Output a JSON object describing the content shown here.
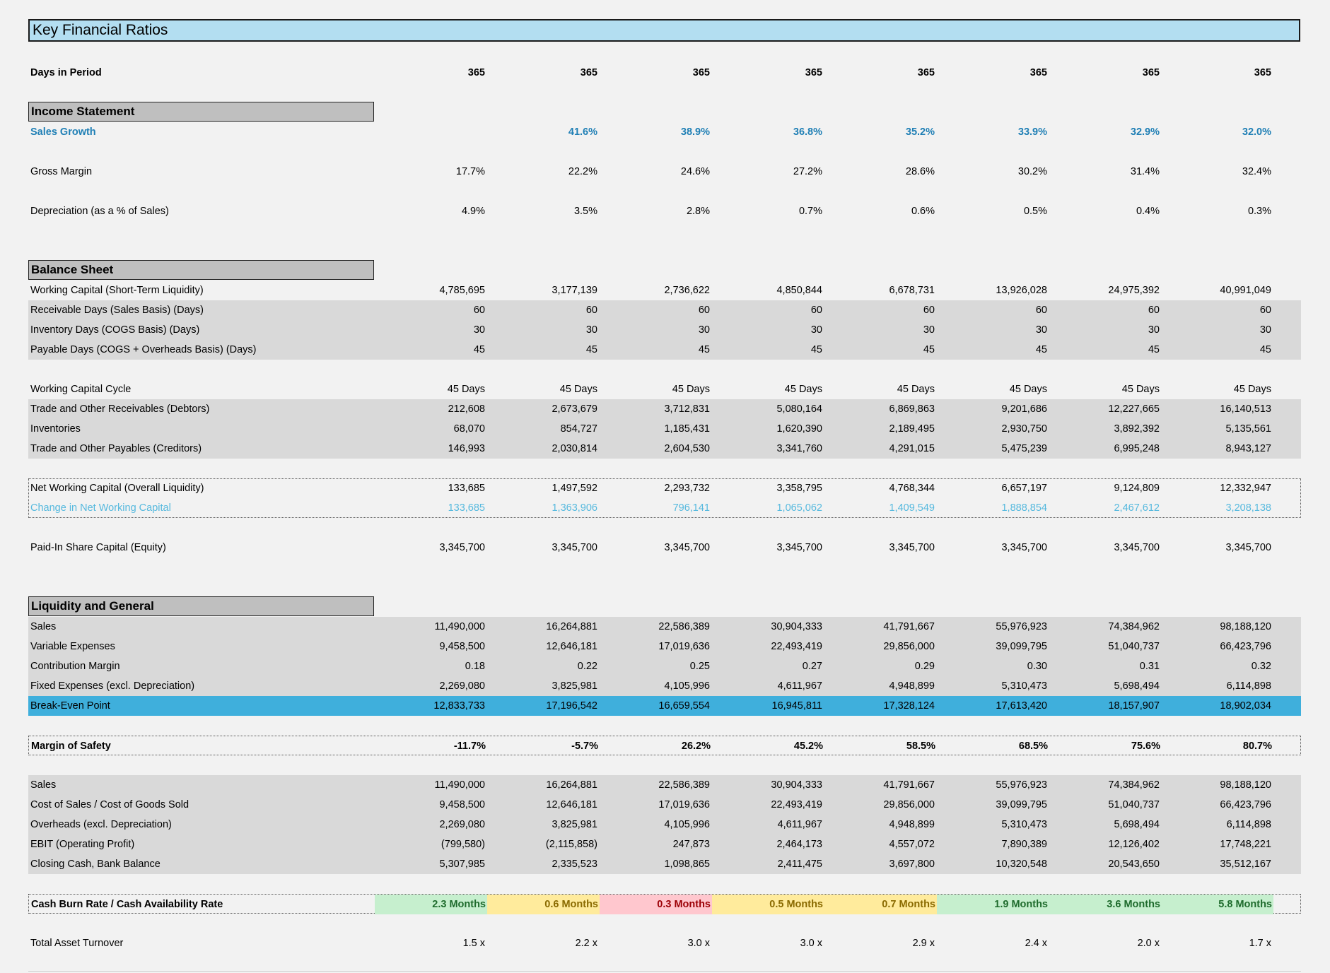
{
  "title": "Key Financial Ratios",
  "days_in_period": {
    "label": "Days in Period",
    "values": [
      "365",
      "365",
      "365",
      "365",
      "365",
      "365",
      "365",
      "365"
    ]
  },
  "income_statement": {
    "heading": "Income Statement",
    "sales_growth": {
      "label": "Sales Growth",
      "values": [
        "",
        "41.6%",
        "38.9%",
        "36.8%",
        "35.2%",
        "33.9%",
        "32.9%",
        "32.0%"
      ]
    },
    "gross_margin": {
      "label": "Gross Margin",
      "values": [
        "17.7%",
        "22.2%",
        "24.6%",
        "27.2%",
        "28.6%",
        "30.2%",
        "31.4%",
        "32.4%"
      ]
    },
    "depreciation": {
      "label": "Depreciation (as a % of Sales)",
      "values": [
        "4.9%",
        "3.5%",
        "2.8%",
        "0.7%",
        "0.6%",
        "0.5%",
        "0.4%",
        "0.3%"
      ]
    }
  },
  "balance_sheet": {
    "heading": "Balance Sheet",
    "working_capital": {
      "label": "Working Capital (Short-Term Liquidity)",
      "values": [
        "4,785,695",
        "3,177,139",
        "2,736,622",
        "4,850,844",
        "6,678,731",
        "13,926,028",
        "24,975,392",
        "40,991,049"
      ]
    },
    "receivable_days": {
      "label": "Receivable Days (Sales Basis) (Days)",
      "values": [
        "60",
        "60",
        "60",
        "60",
        "60",
        "60",
        "60",
        "60"
      ]
    },
    "inventory_days": {
      "label": "Inventory Days (COGS Basis) (Days)",
      "values": [
        "30",
        "30",
        "30",
        "30",
        "30",
        "30",
        "30",
        "30"
      ]
    },
    "payable_days": {
      "label": "Payable Days (COGS + Overheads Basis) (Days)",
      "values": [
        "45",
        "45",
        "45",
        "45",
        "45",
        "45",
        "45",
        "45"
      ]
    },
    "wc_cycle": {
      "label": "Working Capital Cycle",
      "values": [
        "45 Days",
        "45 Days",
        "45 Days",
        "45 Days",
        "45 Days",
        "45 Days",
        "45 Days",
        "45 Days"
      ]
    },
    "receivables": {
      "label": "Trade and Other Receivables (Debtors)",
      "values": [
        "212,608",
        "2,673,679",
        "3,712,831",
        "5,080,164",
        "6,869,863",
        "9,201,686",
        "12,227,665",
        "16,140,513"
      ]
    },
    "inventories": {
      "label": "Inventories",
      "values": [
        "68,070",
        "854,727",
        "1,185,431",
        "1,620,390",
        "2,189,495",
        "2,930,750",
        "3,892,392",
        "5,135,561"
      ]
    },
    "payables": {
      "label": "Trade and Other Payables (Creditors)",
      "values": [
        "146,993",
        "2,030,814",
        "2,604,530",
        "3,341,760",
        "4,291,015",
        "5,475,239",
        "6,995,248",
        "8,943,127"
      ]
    },
    "net_wc": {
      "label": "Net Working Capital (Overall Liquidity)",
      "values": [
        "133,685",
        "1,497,592",
        "2,293,732",
        "3,358,795",
        "4,768,344",
        "6,657,197",
        "9,124,809",
        "12,332,947"
      ]
    },
    "change_nwc": {
      "label": "Change in Net Working Capital",
      "values": [
        "133,685",
        "1,363,906",
        "796,141",
        "1,065,062",
        "1,409,549",
        "1,888,854",
        "2,467,612",
        "3,208,138"
      ]
    },
    "share_capital": {
      "label": "Paid-In Share Capital (Equity)",
      "values": [
        "3,345,700",
        "3,345,700",
        "3,345,700",
        "3,345,700",
        "3,345,700",
        "3,345,700",
        "3,345,700",
        "3,345,700"
      ]
    }
  },
  "liquidity": {
    "heading": "Liquidity and General",
    "sales": {
      "label": "Sales",
      "values": [
        "11,490,000",
        "16,264,881",
        "22,586,389",
        "30,904,333",
        "41,791,667",
        "55,976,923",
        "74,384,962",
        "98,188,120"
      ]
    },
    "variable_expenses": {
      "label": "Variable Expenses",
      "values": [
        "9,458,500",
        "12,646,181",
        "17,019,636",
        "22,493,419",
        "29,856,000",
        "39,099,795",
        "51,040,737",
        "66,423,796"
      ]
    },
    "contribution_margin": {
      "label": "Contribution Margin",
      "values": [
        "0.18",
        "0.22",
        "0.25",
        "0.27",
        "0.29",
        "0.30",
        "0.31",
        "0.32"
      ]
    },
    "fixed_expenses": {
      "label": "Fixed Expenses (excl. Depreciation)",
      "values": [
        "2,269,080",
        "3,825,981",
        "4,105,996",
        "4,611,967",
        "4,948,899",
        "5,310,473",
        "5,698,494",
        "6,114,898"
      ]
    },
    "break_even": {
      "label": "Break-Even Point",
      "values": [
        "12,833,733",
        "17,196,542",
        "16,659,554",
        "16,945,811",
        "17,328,124",
        "17,613,420",
        "18,157,907",
        "18,902,034"
      ]
    },
    "margin_of_safety": {
      "label": "Margin of Safety",
      "values": [
        "-11.7%",
        "-5.7%",
        "26.2%",
        "45.2%",
        "58.5%",
        "68.5%",
        "75.6%",
        "80.7%"
      ]
    },
    "sales2": {
      "label": "Sales",
      "values": [
        "11,490,000",
        "16,264,881",
        "22,586,389",
        "30,904,333",
        "41,791,667",
        "55,976,923",
        "74,384,962",
        "98,188,120"
      ]
    },
    "cogs": {
      "label": "Cost of Sales / Cost of Goods Sold",
      "values": [
        "9,458,500",
        "12,646,181",
        "17,019,636",
        "22,493,419",
        "29,856,000",
        "39,099,795",
        "51,040,737",
        "66,423,796"
      ]
    },
    "overheads": {
      "label": "Overheads (excl. Depreciation)",
      "values": [
        "2,269,080",
        "3,825,981",
        "4,105,996",
        "4,611,967",
        "4,948,899",
        "5,310,473",
        "5,698,494",
        "6,114,898"
      ]
    },
    "ebit": {
      "label": "EBIT (Operating Profit)",
      "values": [
        "(799,580)",
        "(2,115,858)",
        "247,873",
        "2,464,173",
        "4,557,072",
        "7,890,389",
        "12,126,402",
        "17,748,221"
      ]
    },
    "closing_cash": {
      "label": "Closing Cash, Bank Balance",
      "values": [
        "5,307,985",
        "2,335,523",
        "1,098,865",
        "2,411,475",
        "3,697,800",
        "10,320,548",
        "20,543,650",
        "35,512,167"
      ]
    },
    "cash_burn": {
      "label": "Cash Burn Rate / Cash Availability Rate",
      "values": [
        "2.3 Months",
        "0.6 Months",
        "0.3 Months",
        "0.5 Months",
        "0.7 Months",
        "1.9 Months",
        "3.6 Months",
        "5.8 Months"
      ],
      "status": [
        "green",
        "yellow",
        "red",
        "yellow",
        "yellow",
        "green",
        "green",
        "green"
      ],
      "status_colors": {
        "green": "#c6efce",
        "yellow": "#ffeb9c",
        "red": "#ffc7ce"
      }
    },
    "asset_turnover": {
      "label": "Total Asset Turnover",
      "values": [
        "1.5 x",
        "2.2 x",
        "3.0 x",
        "3.0 x",
        "2.9 x",
        "2.4 x",
        "2.0 x",
        "1.7 x"
      ]
    }
  }
}
